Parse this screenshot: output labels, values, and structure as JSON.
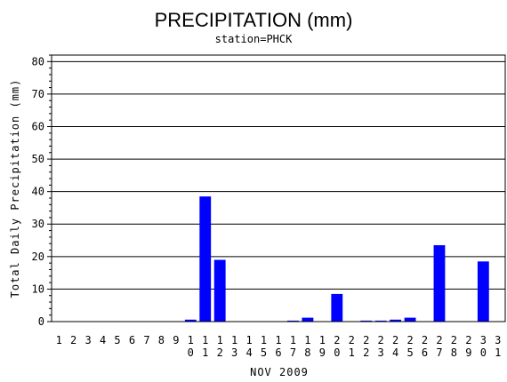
{
  "chart_data": {
    "type": "bar",
    "title": "PRECIPITATION (mm)",
    "subtitle": "station=PHCK",
    "xlabel": "NOV 2009",
    "ylabel": "Total Daily Precipitation (mm)",
    "ylim": [
      0,
      82
    ],
    "yticks": [
      0,
      10,
      20,
      30,
      40,
      50,
      60,
      70,
      80
    ],
    "grid": true,
    "categories": [
      "1",
      "2",
      "3",
      "4",
      "5",
      "6",
      "7",
      "8",
      "9",
      "10",
      "11",
      "12",
      "13",
      "14",
      "15",
      "16",
      "17",
      "18",
      "19",
      "20",
      "21",
      "22",
      "23",
      "24",
      "25",
      "26",
      "27",
      "28",
      "29",
      "30",
      "31"
    ],
    "values": [
      0,
      0,
      0,
      0,
      0,
      0,
      0,
      0,
      0,
      0.6,
      38.5,
      19,
      0,
      0,
      0,
      0,
      0.3,
      1.2,
      0,
      8.5,
      0,
      0.3,
      0.3,
      0.6,
      1.2,
      0,
      23.5,
      0,
      0,
      18.5,
      0
    ],
    "bar_color": "#0000ff"
  }
}
